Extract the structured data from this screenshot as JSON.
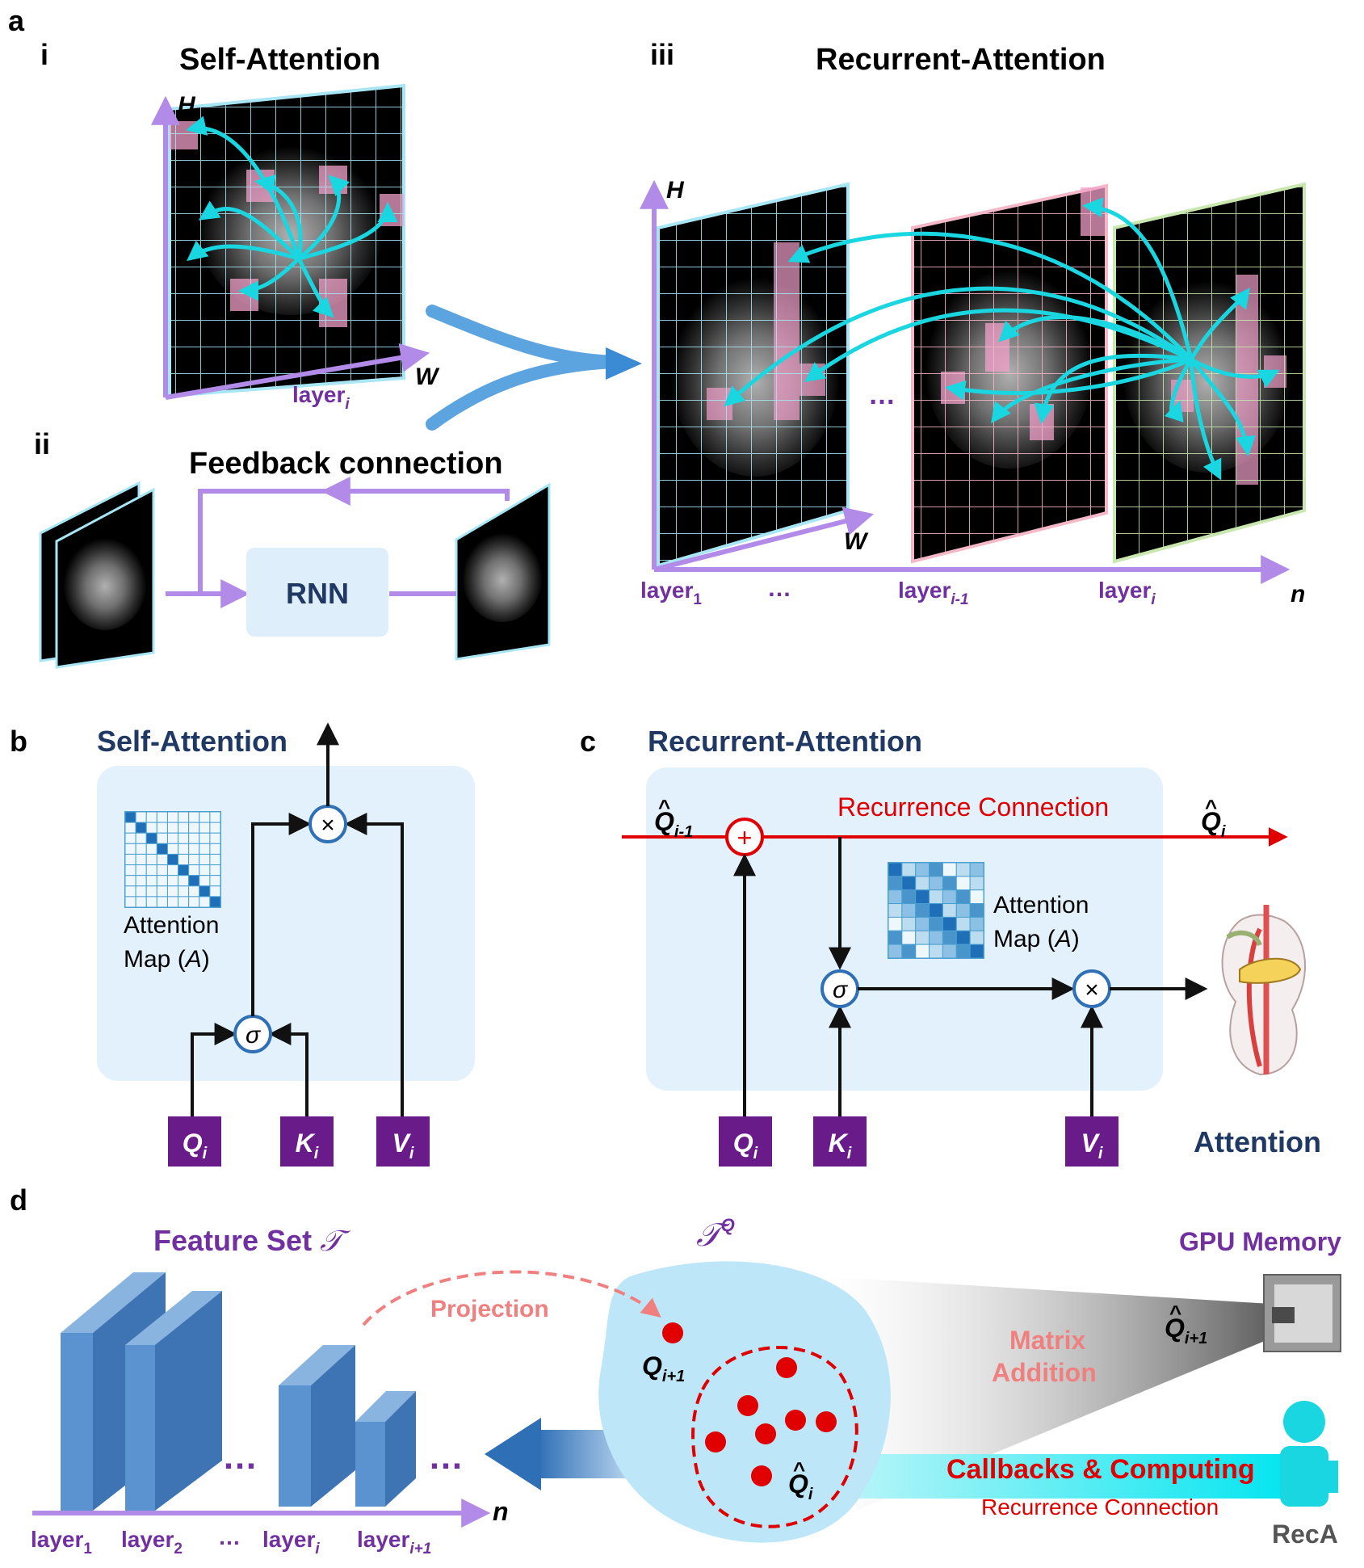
{
  "panel_a": {
    "letter": "a",
    "i": {
      "numeral": "i",
      "title": "Self-Attention",
      "axis_h": "H",
      "axis_w": "W",
      "layer": "layer",
      "layer_sub": "i"
    },
    "ii": {
      "numeral": "ii",
      "title": "Feedback connection",
      "rnn": "RNN"
    },
    "iii": {
      "numeral": "iii",
      "title": "Recurrent-Attention",
      "axis_h": "H",
      "axis_w": "W",
      "axis_n": "n",
      "ellipsis": "…",
      "layers": [
        {
          "base": "layer",
          "sub": "1"
        },
        {
          "base": "layer",
          "sub": "i-1"
        },
        {
          "base": "layer",
          "sub": "i"
        }
      ]
    }
  },
  "panel_b": {
    "letter": "b",
    "title": "Self-Attention",
    "map_label_1": "Attention",
    "map_label_2": "Map (",
    "map_label_a": "A",
    "map_label_3": ")",
    "sigma": "σ",
    "times": "×",
    "inputs": [
      {
        "base": "Q",
        "sub": "i"
      },
      {
        "base": "K",
        "sub": "i"
      },
      {
        "base": "V",
        "sub": "i"
      }
    ]
  },
  "panel_c": {
    "letter": "c",
    "title": "Recurrent-Attention",
    "recurrence": "Recurrence Connection",
    "q_prev_base": "Q",
    "q_prev_sub": "i-1",
    "q_next_base": "Q",
    "q_next_sub": "i",
    "map_label_1": "Attention",
    "map_label_2": "Map (",
    "map_label_a": "A",
    "map_label_3": ")",
    "plus": "+",
    "sigma": "σ",
    "times": "×",
    "inputs": [
      {
        "base": "Q",
        "sub": "i"
      },
      {
        "base": "K",
        "sub": "i"
      },
      {
        "base": "V",
        "sub": "i"
      }
    ],
    "output": "Attention"
  },
  "panel_d": {
    "letter": "d",
    "feature_set": "Feature Set ",
    "feature_symbol": "𝒯",
    "tq_symbol": "𝒯",
    "tq_sup": "Q",
    "projection": "Projection",
    "q_next_base": "Q",
    "q_next_sub": "i+1",
    "q_hat_base": "Q",
    "q_hat_sub": "i",
    "gpu_memory": "GPU Memory",
    "gpu_q_base": "Q",
    "gpu_q_sub": "i+1",
    "matrix_1": "Matrix",
    "matrix_2": "Addition",
    "callbacks": "Callbacks & Computing",
    "recurrence": "Recurrence Connection",
    "reca": "RecA",
    "axis_n": "n",
    "ellipsis": "…",
    "layers": [
      {
        "base": "layer",
        "sub": "1"
      },
      {
        "base": "layer",
        "sub": "2"
      },
      {
        "base": "layer",
        "sub": "i"
      },
      {
        "base": "layer",
        "sub": "i+1"
      }
    ],
    "between_dots": "…"
  }
}
